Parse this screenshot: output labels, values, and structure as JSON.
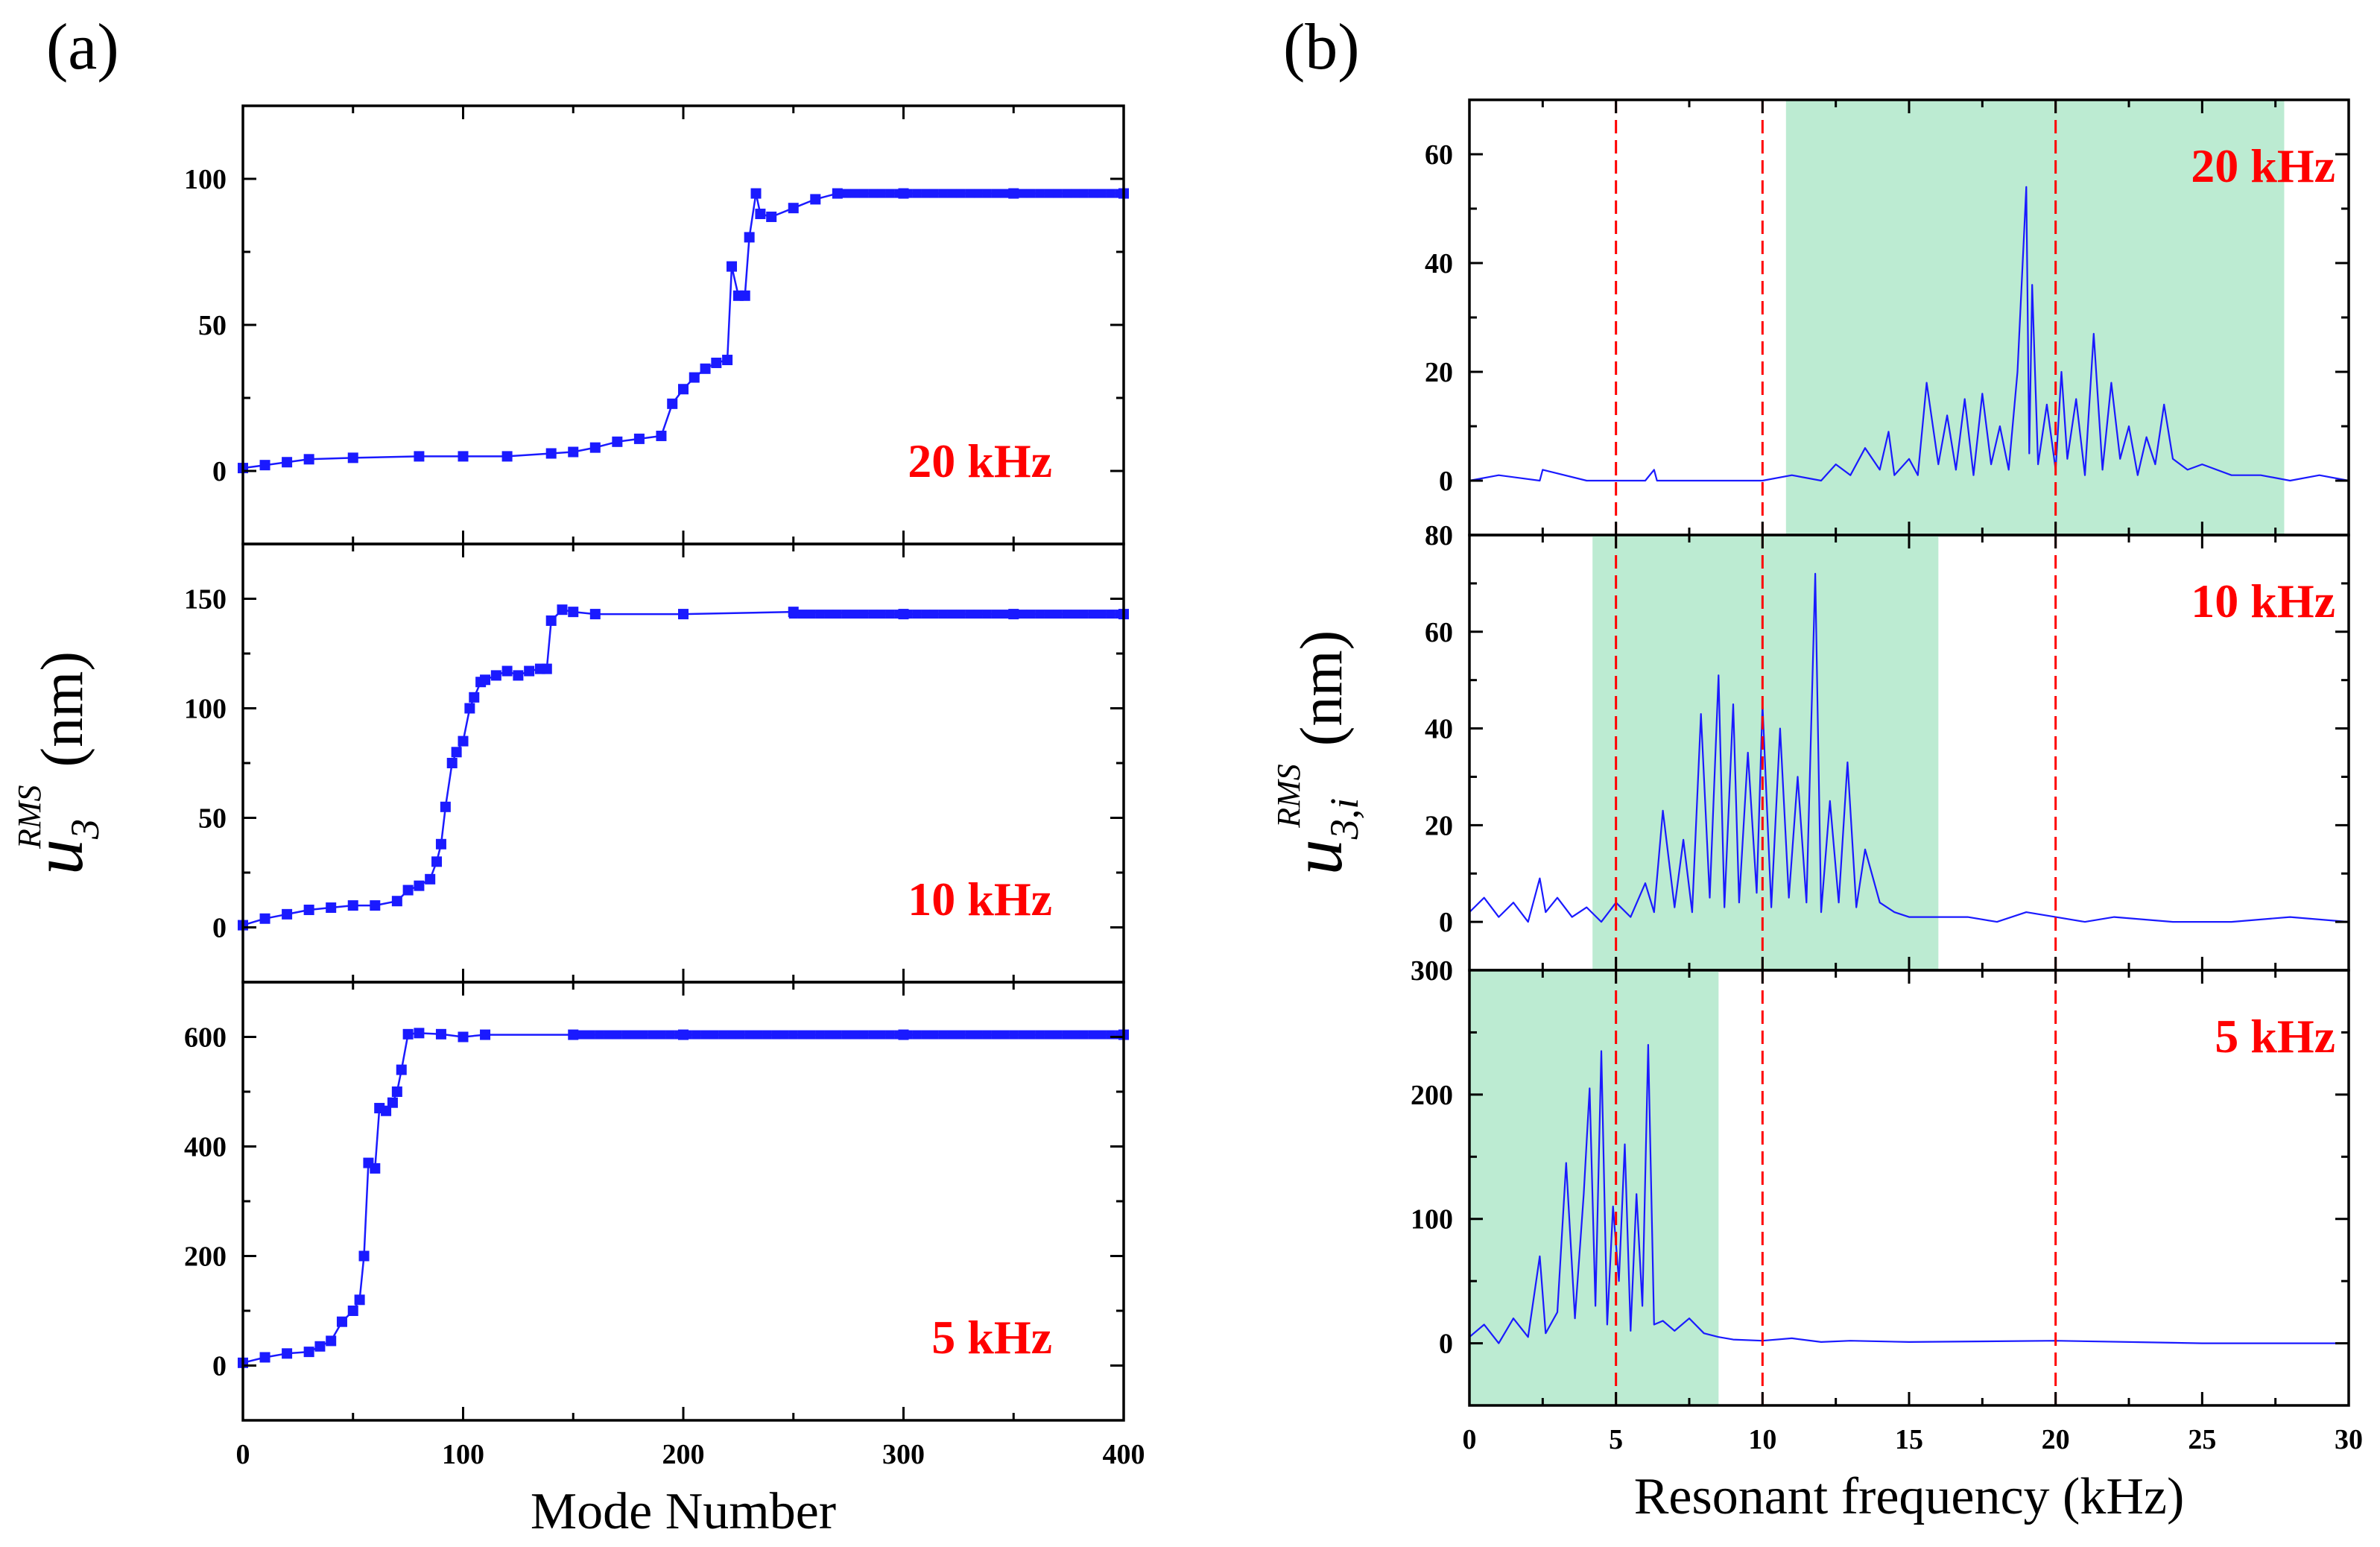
{
  "figure": {
    "panel_a_label": "(a)",
    "panel_b_label": "(b)"
  },
  "chart_data": [
    {
      "id": "a",
      "type": "line",
      "description_label": "(a)",
      "xlabel": "Mode Number",
      "ylabel_main": "u",
      "ylabel_sub": "3",
      "ylabel_sup": "RMS",
      "ylabel_unit": "(nm)",
      "xlim": [
        0,
        400
      ],
      "xticks": [
        0,
        100,
        200,
        300,
        400
      ],
      "line_color": "#1a1aff",
      "marker": "square",
      "subplots": [
        {
          "annotation": "20 kHz",
          "ylim": [
            -25,
            125
          ],
          "yticks": [
            0,
            50,
            100
          ],
          "x": [
            0,
            10,
            20,
            30,
            50,
            80,
            100,
            120,
            140,
            150,
            160,
            170,
            180,
            190,
            195,
            200,
            205,
            210,
            215,
            220,
            222,
            225,
            228,
            230,
            233,
            235,
            240,
            250,
            260,
            270,
            300,
            350,
            400
          ],
          "values": [
            1,
            2,
            3,
            4,
            4.5,
            5,
            5,
            5,
            6,
            6.5,
            8,
            10,
            11,
            12,
            23,
            28,
            32,
            35,
            37,
            38,
            70,
            60,
            60,
            80,
            95,
            88,
            87,
            90,
            93,
            95,
            95,
            95,
            95
          ]
        },
        {
          "annotation": "10 kHz",
          "ylim": [
            -25,
            175
          ],
          "yticks": [
            0,
            50,
            100,
            150
          ],
          "x": [
            0,
            10,
            20,
            30,
            40,
            50,
            60,
            70,
            75,
            80,
            85,
            88,
            90,
            92,
            95,
            97,
            100,
            103,
            105,
            108,
            110,
            115,
            120,
            125,
            130,
            135,
            138,
            140,
            145,
            150,
            160,
            200,
            250,
            300,
            350,
            400
          ],
          "values": [
            1,
            4,
            6,
            8,
            9,
            10,
            10,
            12,
            17,
            19,
            22,
            30,
            38,
            55,
            75,
            80,
            85,
            100,
            105,
            112,
            113,
            115,
            117,
            115,
            117,
            118,
            118,
            140,
            145,
            144,
            143,
            143,
            144,
            143,
            143,
            143
          ]
        },
        {
          "annotation": "5 kHz",
          "ylim": [
            -100,
            700
          ],
          "yticks": [
            0,
            200,
            400,
            600
          ],
          "x": [
            0,
            10,
            20,
            30,
            35,
            40,
            45,
            50,
            53,
            55,
            57,
            60,
            62,
            65,
            68,
            70,
            72,
            75,
            80,
            90,
            100,
            110,
            150,
            200,
            300,
            400
          ],
          "values": [
            5,
            15,
            22,
            25,
            35,
            45,
            80,
            100,
            120,
            200,
            370,
            360,
            470,
            465,
            480,
            500,
            540,
            605,
            607,
            605,
            600,
            604,
            604,
            604,
            604,
            604
          ]
        }
      ]
    },
    {
      "id": "b",
      "type": "line",
      "description_label": "(b)",
      "xlabel": "Resonant frequency (kHz)",
      "ylabel_main": "u",
      "ylabel_sub": "3,i",
      "ylabel_sup": "RMS",
      "ylabel_unit": "(nm)",
      "xlim": [
        0,
        30
      ],
      "xticks": [
        0,
        5,
        10,
        15,
        20,
        25,
        30
      ],
      "vlines": [
        5,
        10,
        20
      ],
      "vline_color": "#ff0000",
      "shade_color": "#bcebd2",
      "line_color": "#1a1aff",
      "subplots": [
        {
          "annotation": "20 kHz",
          "ylim": [
            -10,
            70
          ],
          "yticks": [
            0,
            20,
            40,
            60
          ],
          "shade": [
            10.8,
            27.8
          ],
          "x": [
            0,
            1,
            2.4,
            2.5,
            4,
            6,
            6.3,
            6.4,
            8,
            10,
            11,
            12,
            12.5,
            13,
            13.5,
            14,
            14.3,
            14.5,
            15,
            15.3,
            15.6,
            16,
            16.3,
            16.6,
            16.9,
            17.2,
            17.5,
            17.8,
            18.1,
            18.4,
            18.7,
            19,
            19.1,
            19.2,
            19.4,
            19.7,
            20,
            20.2,
            20.4,
            20.7,
            21,
            21.3,
            21.6,
            21.9,
            22.2,
            22.5,
            22.8,
            23.1,
            23.4,
            23.7,
            24,
            24.5,
            25,
            26,
            27,
            28,
            29,
            30
          ],
          "values": [
            0,
            1,
            0,
            2,
            0,
            0,
            2,
            0,
            0,
            0,
            1,
            0,
            3,
            1,
            6,
            2,
            9,
            1,
            4,
            1,
            18,
            3,
            12,
            2,
            15,
            1,
            16,
            3,
            10,
            2,
            20,
            54,
            5,
            36,
            3,
            14,
            2,
            20,
            4,
            15,
            1,
            27,
            2,
            18,
            4,
            10,
            1,
            8,
            3,
            14,
            4,
            2,
            3,
            1,
            1,
            0,
            1,
            0
          ]
        },
        {
          "annotation": "10 kHz",
          "ylim": [
            -10,
            80
          ],
          "yticks": [
            0,
            20,
            40,
            60,
            80
          ],
          "shade": [
            4.2,
            16
          ],
          "x": [
            0,
            0.5,
            1,
            1.5,
            2,
            2.4,
            2.6,
            3,
            3.5,
            4,
            4.5,
            5,
            5.5,
            6,
            6.3,
            6.6,
            7,
            7.3,
            7.6,
            7.9,
            8.2,
            8.5,
            8.7,
            9,
            9.2,
            9.5,
            9.8,
            10,
            10.3,
            10.6,
            10.9,
            11.2,
            11.5,
            11.8,
            12,
            12.3,
            12.6,
            12.9,
            13.2,
            13.5,
            14,
            14.5,
            15,
            16,
            17,
            18,
            19,
            20,
            21,
            22,
            24,
            26,
            28,
            30
          ],
          "values": [
            2,
            5,
            1,
            4,
            0,
            9,
            2,
            5,
            1,
            3,
            0,
            4,
            1,
            8,
            2,
            23,
            3,
            17,
            2,
            43,
            5,
            51,
            3,
            45,
            4,
            35,
            6,
            45,
            3,
            40,
            5,
            30,
            4,
            72,
            2,
            25,
            4,
            33,
            3,
            15,
            4,
            2,
            1,
            1,
            1,
            0,
            2,
            1,
            0,
            1,
            0,
            0,
            1,
            0
          ]
        },
        {
          "annotation": "5 kHz",
          "ylim": [
            -50,
            300
          ],
          "yticks": [
            0,
            100,
            200,
            300
          ],
          "shade": [
            0,
            8.5
          ],
          "x": [
            0,
            0.5,
            1,
            1.5,
            2,
            2.4,
            2.6,
            3,
            3.3,
            3.6,
            3.9,
            4.1,
            4.3,
            4.5,
            4.7,
            4.9,
            5.1,
            5.3,
            5.5,
            5.7,
            5.9,
            6.1,
            6.3,
            6.6,
            7,
            7.5,
            8,
            8.5,
            9,
            10,
            11,
            12,
            13,
            15,
            20,
            25,
            30
          ],
          "values": [
            5,
            15,
            0,
            20,
            5,
            70,
            8,
            25,
            145,
            20,
            120,
            205,
            30,
            235,
            15,
            110,
            50,
            160,
            10,
            120,
            30,
            240,
            15,
            18,
            10,
            20,
            8,
            5,
            3,
            2,
            4,
            1,
            2,
            1,
            2,
            0,
            0
          ]
        }
      ]
    }
  ]
}
